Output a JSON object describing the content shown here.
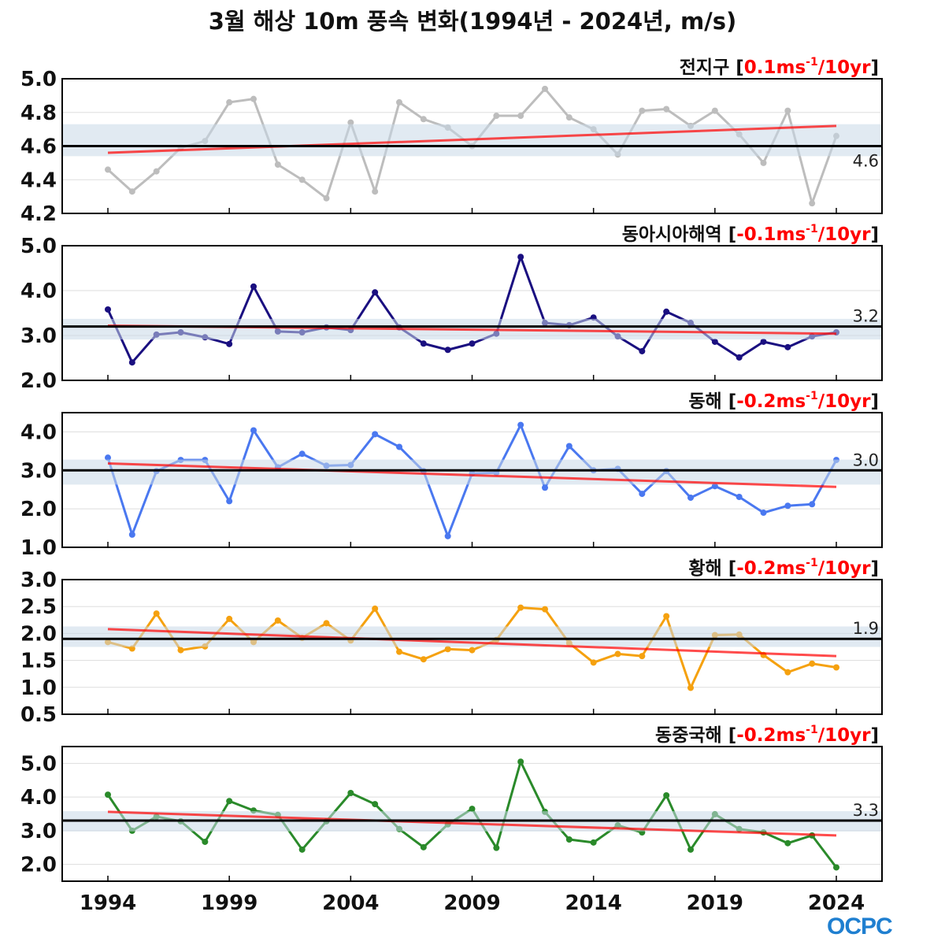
{
  "title": "3월 해상 10m 풍속 변화(1994년 - 2024년, m/s)",
  "logo": "OCPC",
  "chart_data": [
    {
      "type": "line",
      "region": "전지구",
      "trend_label": "0.1ms",
      "trend_sup": "-1",
      "trend_unit": "/10yr",
      "color": "#bdbdbd",
      "ylim": [
        4.2,
        5.0
      ],
      "yticks": [
        "4.2",
        "4.4",
        "4.6",
        "4.8",
        "5.0"
      ],
      "mean": 4.6,
      "mean_label": "4.6",
      "band": [
        4.54,
        4.73
      ],
      "trend_line": [
        4.56,
        4.72
      ],
      "values": [
        4.46,
        4.33,
        4.45,
        4.59,
        4.63,
        4.86,
        4.88,
        4.49,
        4.4,
        4.29,
        4.74,
        4.33,
        4.86,
        4.76,
        4.71,
        4.6,
        4.78,
        4.78,
        4.94,
        4.77,
        4.7,
        4.55,
        4.81,
        4.82,
        4.72,
        4.81,
        4.67,
        4.5,
        4.81,
        4.26,
        4.66
      ]
    },
    {
      "type": "line",
      "region": "동아시아해역",
      "trend_label": "-0.1ms",
      "trend_sup": "-1",
      "trend_unit": "/10yr",
      "color": "#1a0f80",
      "ylim": [
        2.0,
        5.0
      ],
      "yticks": [
        "2.0",
        "3.0",
        "4.0",
        "5.0"
      ],
      "mean": 3.2,
      "mean_label": "3.2",
      "band": [
        2.91,
        3.37
      ],
      "trend_line": [
        3.22,
        3.04
      ],
      "values": [
        3.58,
        2.4,
        3.02,
        3.07,
        2.96,
        2.81,
        4.09,
        3.09,
        3.07,
        3.18,
        3.12,
        3.96,
        3.18,
        2.82,
        2.68,
        2.82,
        3.04,
        4.75,
        3.28,
        3.23,
        3.4,
        2.98,
        2.65,
        3.53,
        3.28,
        2.86,
        2.51,
        2.86,
        2.74,
        2.98,
        3.07
      ]
    },
    {
      "type": "line",
      "region": "동해",
      "trend_label": "-0.2ms",
      "trend_sup": "-1",
      "trend_unit": "/10yr",
      "color": "#4a78f0",
      "ylim": [
        1.0,
        4.5
      ],
      "yticks": [
        "1.0",
        "2.0",
        "3.0",
        "4.0"
      ],
      "mean": 3.0,
      "mean_label": "3.0",
      "band": [
        2.63,
        3.28
      ],
      "trend_line": [
        3.18,
        2.57
      ],
      "values": [
        3.33,
        1.33,
        2.98,
        3.27,
        3.27,
        2.2,
        4.04,
        3.08,
        3.43,
        3.12,
        3.14,
        3.94,
        3.61,
        2.98,
        1.29,
        2.92,
        2.94,
        4.18,
        2.55,
        3.63,
        3.0,
        3.04,
        2.39,
        2.98,
        2.29,
        2.59,
        2.31,
        1.9,
        2.08,
        2.12,
        3.27
      ]
    },
    {
      "type": "line",
      "region": "황해",
      "trend_label": "-0.2ms",
      "trend_sup": "-1",
      "trend_unit": "/10yr",
      "color": "#f5a10f",
      "ylim": [
        0.5,
        3.0
      ],
      "yticks": [
        "0.5",
        "1.0",
        "1.5",
        "2.0",
        "2.5",
        "3.0"
      ],
      "mean": 1.9,
      "mean_label": "1.9",
      "band": [
        1.75,
        2.13
      ],
      "trend_line": [
        2.08,
        1.58
      ],
      "values": [
        1.84,
        1.72,
        2.37,
        1.69,
        1.76,
        2.27,
        1.84,
        2.24,
        1.92,
        2.19,
        1.87,
        2.46,
        1.66,
        1.52,
        1.71,
        1.69,
        1.88,
        2.48,
        2.45,
        1.82,
        1.46,
        1.62,
        1.58,
        2.32,
        0.99,
        1.97,
        1.98,
        1.6,
        1.28,
        1.44,
        1.37
      ]
    },
    {
      "type": "line",
      "region": "동중국해",
      "trend_label": "-0.2ms",
      "trend_sup": "-1",
      "trend_unit": "/10yr",
      "color": "#2a8a2a",
      "ylim": [
        1.5,
        5.5
      ],
      "yticks": [
        "2.0",
        "3.0",
        "4.0",
        "5.0"
      ],
      "mean": 3.3,
      "mean_label": "3.3",
      "band": [
        2.98,
        3.58
      ],
      "trend_line": [
        3.56,
        2.86
      ],
      "values": [
        4.07,
        3.0,
        3.42,
        3.28,
        2.67,
        3.88,
        3.6,
        3.47,
        2.44,
        3.28,
        4.12,
        3.79,
        3.05,
        2.51,
        3.19,
        3.65,
        2.49,
        5.05,
        3.56,
        2.74,
        2.65,
        3.16,
        2.95,
        4.05,
        2.44,
        3.49,
        3.05,
        2.95,
        2.63,
        2.86,
        1.91
      ]
    }
  ],
  "x_start": 1994,
  "x_end": 2024,
  "xticks": [
    "1994",
    "1999",
    "2004",
    "2009",
    "2014",
    "2019",
    "2024"
  ],
  "trend_color": "#ff0000",
  "mean_color": "#000000",
  "band_color": "#c9d8e8"
}
